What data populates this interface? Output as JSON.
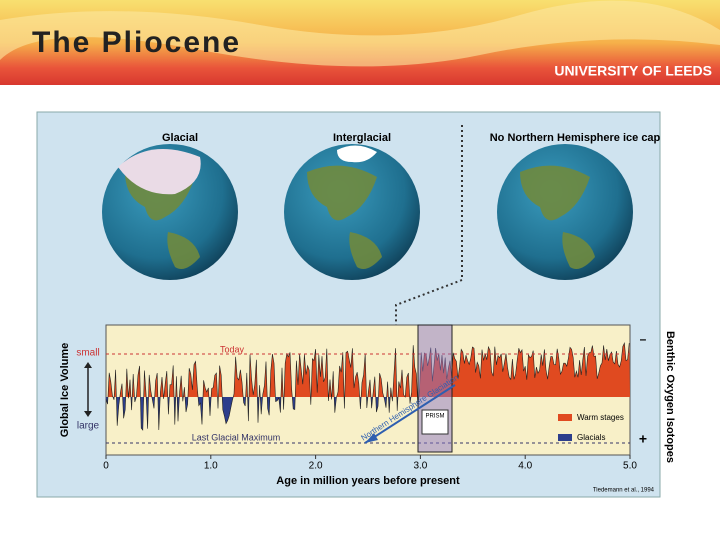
{
  "header": {
    "title": "The Pliocene",
    "logo": "UNIVERSITY OF LEEDS"
  },
  "globes": [
    {
      "label": "Glacial"
    },
    {
      "label": "Interglacial"
    },
    {
      "label": "No Northern Hemisphere ice cap"
    }
  ],
  "chart": {
    "xlabel": "Age in million years before present",
    "ylabel_left": "Global Ice Volume",
    "ylabel_right": "Benthic Oxygen Isotopes",
    "left_top": "small",
    "left_bottom": "large",
    "right_top": "–",
    "right_bottom": "+",
    "xlim": [
      0,
      5
    ],
    "xticks": [
      0,
      {
        "value": 1,
        "label": "1.0"
      },
      {
        "value": 2,
        "label": "2.0"
      },
      {
        "value": 3,
        "label": "3.0"
      },
      {
        "value": 4,
        "label": "4.0"
      },
      {
        "value": 5,
        "label": "5.0"
      }
    ],
    "today": "Today",
    "lgm": "Last Glacial Maximum",
    "annotation": "Northern Hemisphere Glaciation",
    "badge": "PRISM",
    "legend": [
      "Warm stages",
      "Glacials"
    ],
    "credit": "Tiedemann et al., 1994"
  }
}
